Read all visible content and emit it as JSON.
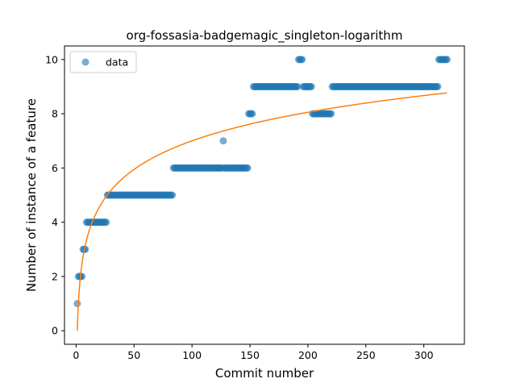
{
  "chart_data": {
    "type": "scatter",
    "title": "org-fossasia-badgemagic_singleton-logarithm",
    "xlabel": "Commit number",
    "ylabel": "Number of instance of a feature",
    "xlim": [
      -10,
      335
    ],
    "ylim": [
      -0.5,
      10.5
    ],
    "xticks": [
      0,
      50,
      100,
      150,
      200,
      250,
      300
    ],
    "yticks": [
      0,
      2,
      4,
      6,
      8,
      10
    ],
    "grid": false,
    "legend": {
      "position": "top-left",
      "entries": [
        "data"
      ]
    },
    "colors": {
      "points": "#1f77b4",
      "fit": "#ff7f0e"
    },
    "segments": [
      {
        "x_start": 1,
        "x_end": 1,
        "y": 1
      },
      {
        "x_start": 2,
        "x_end": 5,
        "y": 2
      },
      {
        "x_start": 6,
        "x_end": 8,
        "y": 3
      },
      {
        "x_start": 9,
        "x_end": 26,
        "y": 4
      },
      {
        "x_start": 27,
        "x_end": 83,
        "y": 5
      },
      {
        "x_start": 84,
        "x_end": 126,
        "y": 6
      },
      {
        "x_start": 127,
        "x_end": 127,
        "y": 7
      },
      {
        "x_start": 128,
        "x_end": 148,
        "y": 6
      },
      {
        "x_start": 149,
        "x_end": 152,
        "y": 8
      },
      {
        "x_start": 153,
        "x_end": 191,
        "y": 9
      },
      {
        "x_start": 192,
        "x_end": 195,
        "y": 10
      },
      {
        "x_start": 196,
        "x_end": 203,
        "y": 9
      },
      {
        "x_start": 204,
        "x_end": 220,
        "y": 8
      },
      {
        "x_start": 221,
        "x_end": 312,
        "y": 9
      },
      {
        "x_start": 313,
        "x_end": 320,
        "y": 10
      }
    ],
    "fit": {
      "model": "y = a*ln(x) + b",
      "a": 1.5203,
      "b": 0,
      "x_range": [
        1,
        320
      ]
    }
  }
}
